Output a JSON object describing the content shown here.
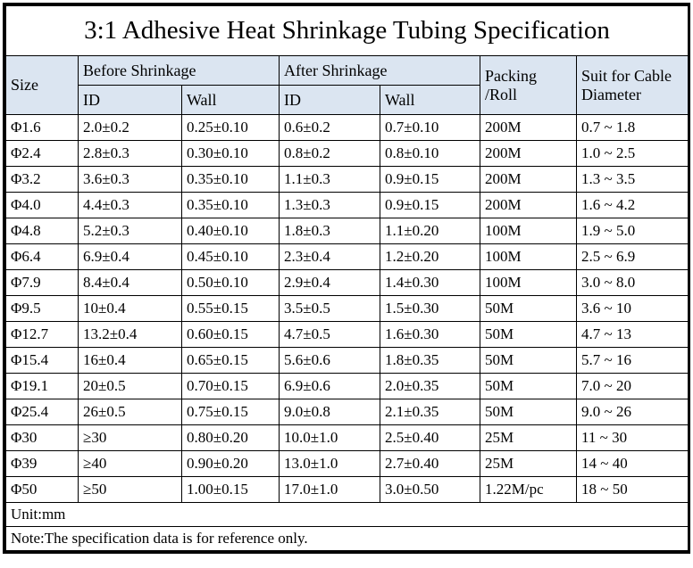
{
  "title": "3:1 Adhesive Heat Shrinkage Tubing Specification",
  "colors": {
    "header_bg": "#dbe5f1",
    "border": "#000000",
    "background": "#ffffff",
    "text": "#000000"
  },
  "table": {
    "header": {
      "size": "Size",
      "before": "Before Shrinkage",
      "after": "After Shrinkage",
      "id": "ID",
      "wall": "Wall",
      "packing": "Packing\n/Roll",
      "suit": "Suit for Cable\nDiameter"
    },
    "rows": [
      [
        "Φ1.6",
        "2.0±0.2",
        "0.25±0.10",
        "0.6±0.2",
        "0.7±0.10",
        "200M",
        "0.7 ~ 1.8"
      ],
      [
        "Φ2.4",
        "2.8±0.3",
        "0.30±0.10",
        "0.8±0.2",
        "0.8±0.10",
        "200M",
        "1.0 ~ 2.5"
      ],
      [
        "Φ3.2",
        "3.6±0.3",
        "0.35±0.10",
        "1.1±0.3",
        "0.9±0.15",
        "200M",
        "1.3 ~ 3.5"
      ],
      [
        "Φ4.0",
        "4.4±0.3",
        "0.35±0.10",
        "1.3±0.3",
        "0.9±0.15",
        "200M",
        "1.6 ~ 4.2"
      ],
      [
        "Φ4.8",
        "5.2±0.3",
        "0.40±0.10",
        "1.8±0.3",
        "1.1±0.20",
        "100M",
        "1.9 ~ 5.0"
      ],
      [
        "Φ6.4",
        "6.9±0.4",
        "0.45±0.10",
        "2.3±0.4",
        "1.2±0.20",
        "100M",
        "2.5 ~ 6.9"
      ],
      [
        "Φ7.9",
        "8.4±0.4",
        "0.50±0.10",
        "2.9±0.4",
        "1.4±0.30",
        "100M",
        "3.0 ~ 8.0"
      ],
      [
        "Φ9.5",
        "10±0.4",
        "0.55±0.15",
        "3.5±0.5",
        "1.5±0.30",
        "50M",
        "3.6 ~ 10"
      ],
      [
        "Φ12.7",
        "13.2±0.4",
        "0.60±0.15",
        "4.7±0.5",
        "1.6±0.30",
        "50M",
        "4.7 ~ 13"
      ],
      [
        "Φ15.4",
        "16±0.4",
        "0.65±0.15",
        "5.6±0.6",
        "1.8±0.35",
        "50M",
        "5.7 ~ 16"
      ],
      [
        "Φ19.1",
        "20±0.5",
        "0.70±0.15",
        "6.9±0.6",
        "2.0±0.35",
        "50M",
        "7.0 ~ 20"
      ],
      [
        "Φ25.4",
        "26±0.5",
        "0.75±0.15",
        "9.0±0.8",
        "2.1±0.35",
        "50M",
        "9.0 ~ 26"
      ],
      [
        "Φ30",
        "≥30",
        "0.80±0.20",
        "10.0±1.0",
        "2.5±0.40",
        "25M",
        "11 ~ 30"
      ],
      [
        "Φ39",
        "≥40",
        "0.90±0.20",
        "13.0±1.0",
        "2.7±0.40",
        "25M",
        "14 ~ 40"
      ],
      [
        "Φ50",
        "≥50",
        "1.00±0.15",
        "17.0±1.0",
        "3.0±0.50",
        "1.22M/pc",
        "18 ~ 50"
      ]
    ]
  },
  "footer": {
    "unit": "Unit:mm",
    "note": "Note:The specification data is for reference only."
  }
}
